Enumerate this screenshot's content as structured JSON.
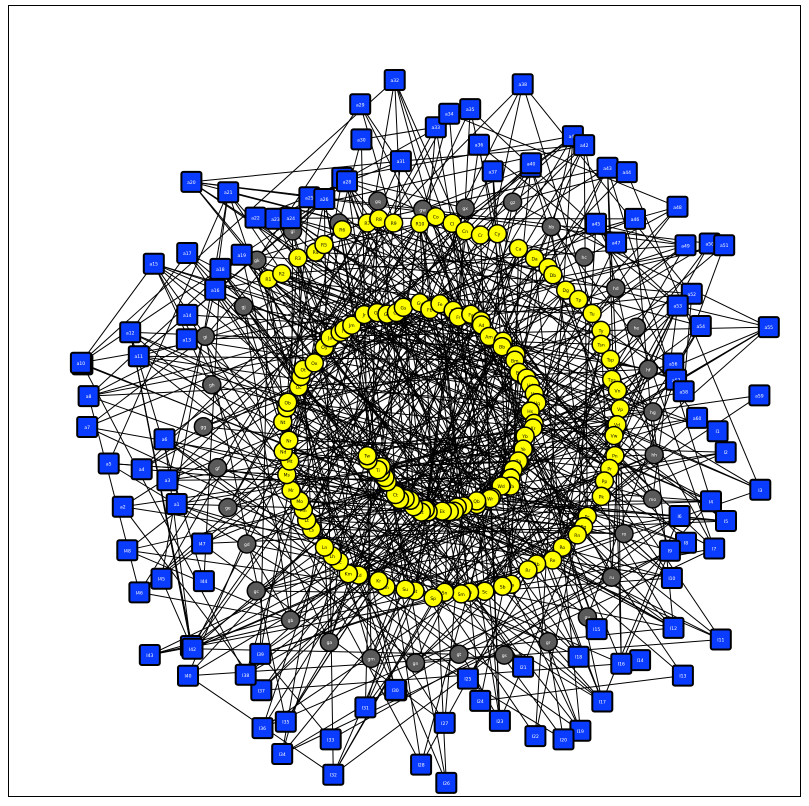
{
  "graph": {
    "node_styles": {
      "square": {
        "fill": "#0a3cff",
        "label_color": "#ffffff"
      },
      "yellow": {
        "fill": "#ffff00",
        "label_color": "#000000"
      },
      "gray": {
        "fill": "#5a5a5a",
        "label_color": "#ffffff"
      }
    },
    "edge_color": "#000000",
    "square_nodes": [
      "I1",
      "I2",
      "I3",
      "I4",
      "I5",
      "I6",
      "I7",
      "I8",
      "I9",
      "I10",
      "I11",
      "I12",
      "I13",
      "I14",
      "I15",
      "I16",
      "I17",
      "I18",
      "I19",
      "I20",
      "I21",
      "I22",
      "I23",
      "I24",
      "I25",
      "I26",
      "I27",
      "I28",
      "I29",
      "I30",
      "I31",
      "I32",
      "I33",
      "I34",
      "I35",
      "I36",
      "I37",
      "I38",
      "I39",
      "I40",
      "I41",
      "I42",
      "I43",
      "I44",
      "I45",
      "I46",
      "I47",
      "I48",
      "a1",
      "a2",
      "a3",
      "a4",
      "a5",
      "a6",
      "a7",
      "a8",
      "a9",
      "a10",
      "a11",
      "a12",
      "a13",
      "a14",
      "a15",
      "a16",
      "a17",
      "a18",
      "a19",
      "a20",
      "a21",
      "a22",
      "a23",
      "a24",
      "a25",
      "a26",
      "a27",
      "a28",
      "a29",
      "a30",
      "a31",
      "a32",
      "a33",
      "a34",
      "a35",
      "a36",
      "a37",
      "a38",
      "a39",
      "a40",
      "a41",
      "a42",
      "a43",
      "a44",
      "a45",
      "a46",
      "a47",
      "a48",
      "a49",
      "a50",
      "a51",
      "a52",
      "a53",
      "a54",
      "a55",
      "a56",
      "a57",
      "a58",
      "a59",
      "a60"
    ],
    "yellow_nodes": [
      "R1",
      "R2",
      "R3",
      "R4",
      "R5",
      "R6",
      "R7",
      "R8",
      "R9",
      "R10",
      "Co",
      "Cl",
      "Cn",
      "Cr",
      "Cy",
      "Ca",
      "Da",
      "Dr",
      "Db",
      "Dg",
      "Tp",
      "Tu",
      "Ty",
      "Tsn",
      "Tsp",
      "Tps",
      "Vn",
      "Vp",
      "Vd",
      "Vw",
      "Pn",
      "Pr",
      "Pp",
      "Pk",
      "Pc",
      "Pg",
      "Rn",
      "Ro",
      "Re",
      "Rb",
      "Rr",
      "Sa",
      "Sb",
      "Sc",
      "Sh",
      "Sm",
      "Sn",
      "Sp",
      "St",
      "Su",
      "Kn",
      "Kr",
      "Kd",
      "Km",
      "Lc",
      "Lh",
      "Ln",
      "Ls",
      "Lt",
      "Mn",
      "Mo",
      "Mr",
      "Ms",
      "Mt",
      "Nd",
      "Nr",
      "Nt",
      "Ny",
      "Ob",
      "Oc",
      "Oq",
      "Ot",
      "Ox",
      "Oy",
      "Ja",
      "Jb",
      "Jd",
      "Jm",
      "Jr",
      "Ge",
      "Gd",
      "Gn",
      "Gs",
      "Gy",
      "Fb",
      "Fe",
      "Fn",
      "Fr",
      "Fy",
      "Ab",
      "Ad",
      "Am",
      "Ay",
      "Bb",
      "Bd",
      "Bm",
      "Bp",
      "Bq",
      "Hd",
      "Hn",
      "Hq",
      "Hs",
      "Xd",
      "Xr",
      "Yb",
      "Ye",
      "Yn",
      "Za",
      "Zb",
      "Zn",
      "Wa",
      "Wd",
      "Wn",
      "Wr",
      "Qe",
      "Qb",
      "Ug",
      "Un",
      "Ie",
      "Id",
      "Ek",
      "Er",
      "Es",
      "Et",
      "Cd",
      "Cw",
      "Ch",
      "Cs",
      "Ct",
      "Dp",
      "Ds",
      "Dt",
      "Dy",
      "Ti",
      "To",
      "Tw"
    ],
    "gray_nodes": [
      "mo",
      "ro",
      "ru",
      "gy",
      "gr",
      "gs",
      "gt",
      "gn",
      "gm",
      "ga",
      "gb",
      "gc",
      "gd",
      "ge",
      "gf",
      "gg",
      "gh",
      "gi",
      "gj",
      "gk",
      "gl",
      "gp",
      "gq",
      "gw",
      "gx",
      "gz",
      "hb",
      "hc",
      "hd",
      "he",
      "hf",
      "hg",
      "hh"
    ]
  }
}
